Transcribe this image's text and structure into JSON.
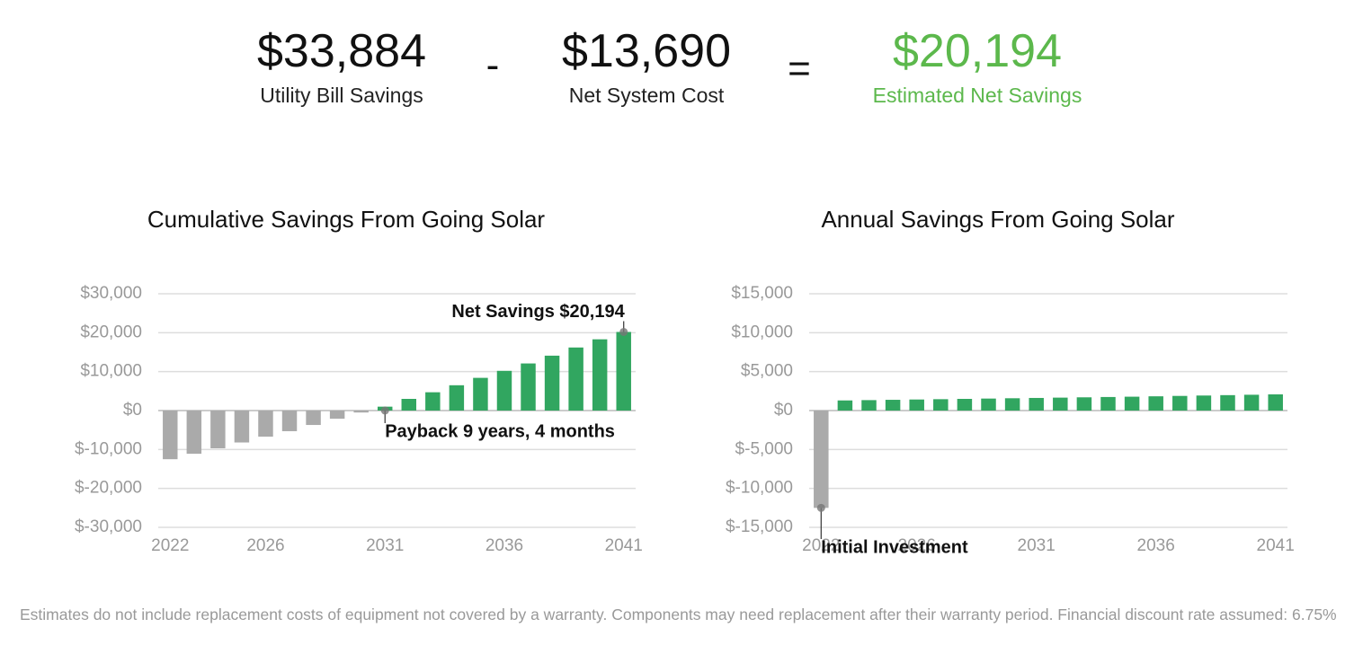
{
  "summary": {
    "items": [
      {
        "value": "$33,884",
        "label": "Utility Bill Savings"
      },
      {
        "value": "$13,690",
        "label": "Net System Cost"
      },
      {
        "value": "$20,194",
        "label": "Estimated Net Savings"
      }
    ],
    "operators": [
      "-",
      "="
    ]
  },
  "chart_data": [
    {
      "type": "bar",
      "title": "Cumulative Savings From Going Solar",
      "x": [
        2022,
        2023,
        2024,
        2025,
        2026,
        2027,
        2028,
        2029,
        2030,
        2031,
        2032,
        2033,
        2034,
        2035,
        2036,
        2037,
        2038,
        2039,
        2040,
        2041
      ],
      "values": [
        -12500,
        -11100,
        -9700,
        -8200,
        -6700,
        -5300,
        -3700,
        -2100,
        -500,
        1000,
        3000,
        4700,
        6500,
        8400,
        10200,
        12100,
        14100,
        16200,
        18300,
        20194
      ],
      "negative_color": "#aaaaaa",
      "positive_color": "#31a660",
      "xlim": [
        2021.5,
        2041.5
      ],
      "xticks": [
        2022,
        2026,
        2031,
        2036,
        2041
      ],
      "ylim": [
        -30000,
        30000
      ],
      "yticks": [
        {
          "value": -30000,
          "label": "$-30,000"
        },
        {
          "value": -20000,
          "label": "$-20,000"
        },
        {
          "value": -10000,
          "label": "$-10,000"
        },
        {
          "value": 0,
          "label": "$0"
        },
        {
          "value": 10000,
          "label": "$10,000"
        },
        {
          "value": 20000,
          "label": "$20,000"
        },
        {
          "value": 30000,
          "label": "$30,000"
        }
      ],
      "grid": true,
      "annotations": [
        {
          "text": "Net Savings $20,194",
          "x": 2041,
          "y": 20194
        },
        {
          "text": "Payback 9 years, 4 months",
          "x": 2031,
          "y": 0
        }
      ]
    },
    {
      "type": "bar",
      "title": "Annual Savings From Going Solar",
      "x": [
        2022,
        2023,
        2024,
        2025,
        2026,
        2027,
        2028,
        2029,
        2030,
        2031,
        2032,
        2033,
        2034,
        2035,
        2036,
        2037,
        2038,
        2039,
        2040,
        2041
      ],
      "values": [
        -12500,
        1300,
        1340,
        1380,
        1420,
        1460,
        1500,
        1540,
        1580,
        1620,
        1660,
        1700,
        1740,
        1780,
        1830,
        1880,
        1930,
        1980,
        2030,
        2080
      ],
      "negative_color": "#aaaaaa",
      "positive_color": "#31a660",
      "xlim": [
        2021.5,
        2041.5
      ],
      "xticks": [
        2022,
        2026,
        2031,
        2036,
        2041
      ],
      "ylim": [
        -15000,
        15000
      ],
      "yticks": [
        {
          "value": -15000,
          "label": "$-15,000"
        },
        {
          "value": -10000,
          "label": "$-10,000"
        },
        {
          "value": -5000,
          "label": "$-5,000"
        },
        {
          "value": 0,
          "label": "$0"
        },
        {
          "value": 5000,
          "label": "$5,000"
        },
        {
          "value": 10000,
          "label": "$10,000"
        },
        {
          "value": 15000,
          "label": "$15,000"
        }
      ],
      "grid": true,
      "annotations": [
        {
          "text": "Initial Investment",
          "x": 2022,
          "y": -12500
        }
      ]
    }
  ],
  "footnote": "Estimates do not include replacement costs of equipment not covered by a warranty. Components may need replacement after their warranty period. Financial discount rate assumed: 6.75%"
}
